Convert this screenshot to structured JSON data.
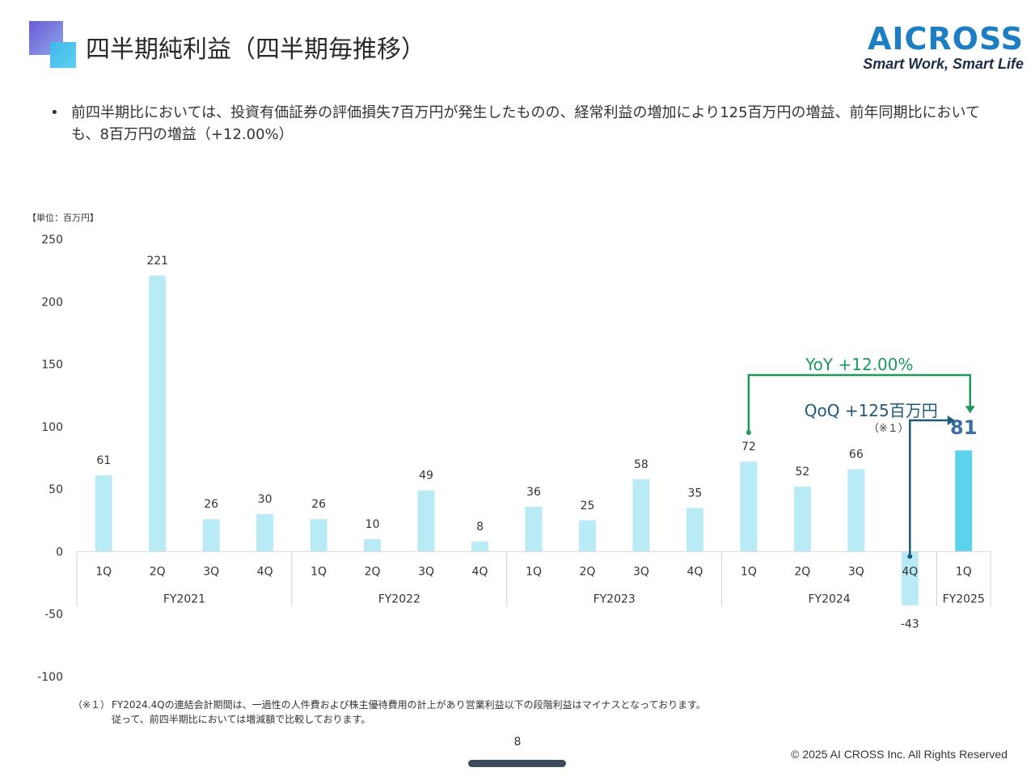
{
  "title": "四半期純利益（四半期毎推移）",
  "brand": {
    "name": "AICROSS",
    "tagline": "Smart Work, Smart Life"
  },
  "bullet": "前四半期比においては、投資有価証券の評価損失7百万円が発生したものの、経常利益の増加により125百万円の増益、前年同期比においても、8百万円の増益（+12.00%）",
  "colors": {
    "bar": "#b9ebf6",
    "bar_highlight": "#5dd2ec",
    "yoy": "#1a9a5a",
    "qoq": "#1e5a78",
    "value81": "#3a6ea8"
  },
  "chart_data": {
    "type": "bar",
    "unit_label": "【単位：百万円】",
    "ylim": [
      -100,
      250
    ],
    "yticks": [
      -100,
      -50,
      0,
      50,
      100,
      150,
      200,
      250
    ],
    "categories": [
      "1Q",
      "2Q",
      "3Q",
      "4Q",
      "1Q",
      "2Q",
      "3Q",
      "4Q",
      "1Q",
      "2Q",
      "3Q",
      "4Q",
      "1Q",
      "2Q",
      "3Q",
      "4Q",
      "1Q"
    ],
    "groups": [
      {
        "label": "FY2021",
        "count": 4
      },
      {
        "label": "FY2022",
        "count": 4
      },
      {
        "label": "FY2023",
        "count": 4
      },
      {
        "label": "FY2024",
        "count": 4
      },
      {
        "label": "FY2025",
        "count": 1
      }
    ],
    "values": [
      61,
      221,
      26,
      30,
      26,
      10,
      49,
      8,
      36,
      25,
      58,
      35,
      72,
      52,
      66,
      -43,
      81
    ],
    "highlight_index": 16,
    "annotations": {
      "yoy": "YoY +12.00%",
      "qoq": "QoQ +125百万円",
      "note": "（※１）"
    }
  },
  "footnote": {
    "ref": "（※１）",
    "line1": "FY2024.4Qの連結会計期間は、一過性の人件費および株主優待費用の計上があり営業利益以下の段階利益はマイナスとなっております。",
    "line2": "従って、前四半期比においては増減額で比較しております。"
  },
  "page_number": "8",
  "copyright": "© 2025 AI CROSS Inc. All Rights Reserved"
}
